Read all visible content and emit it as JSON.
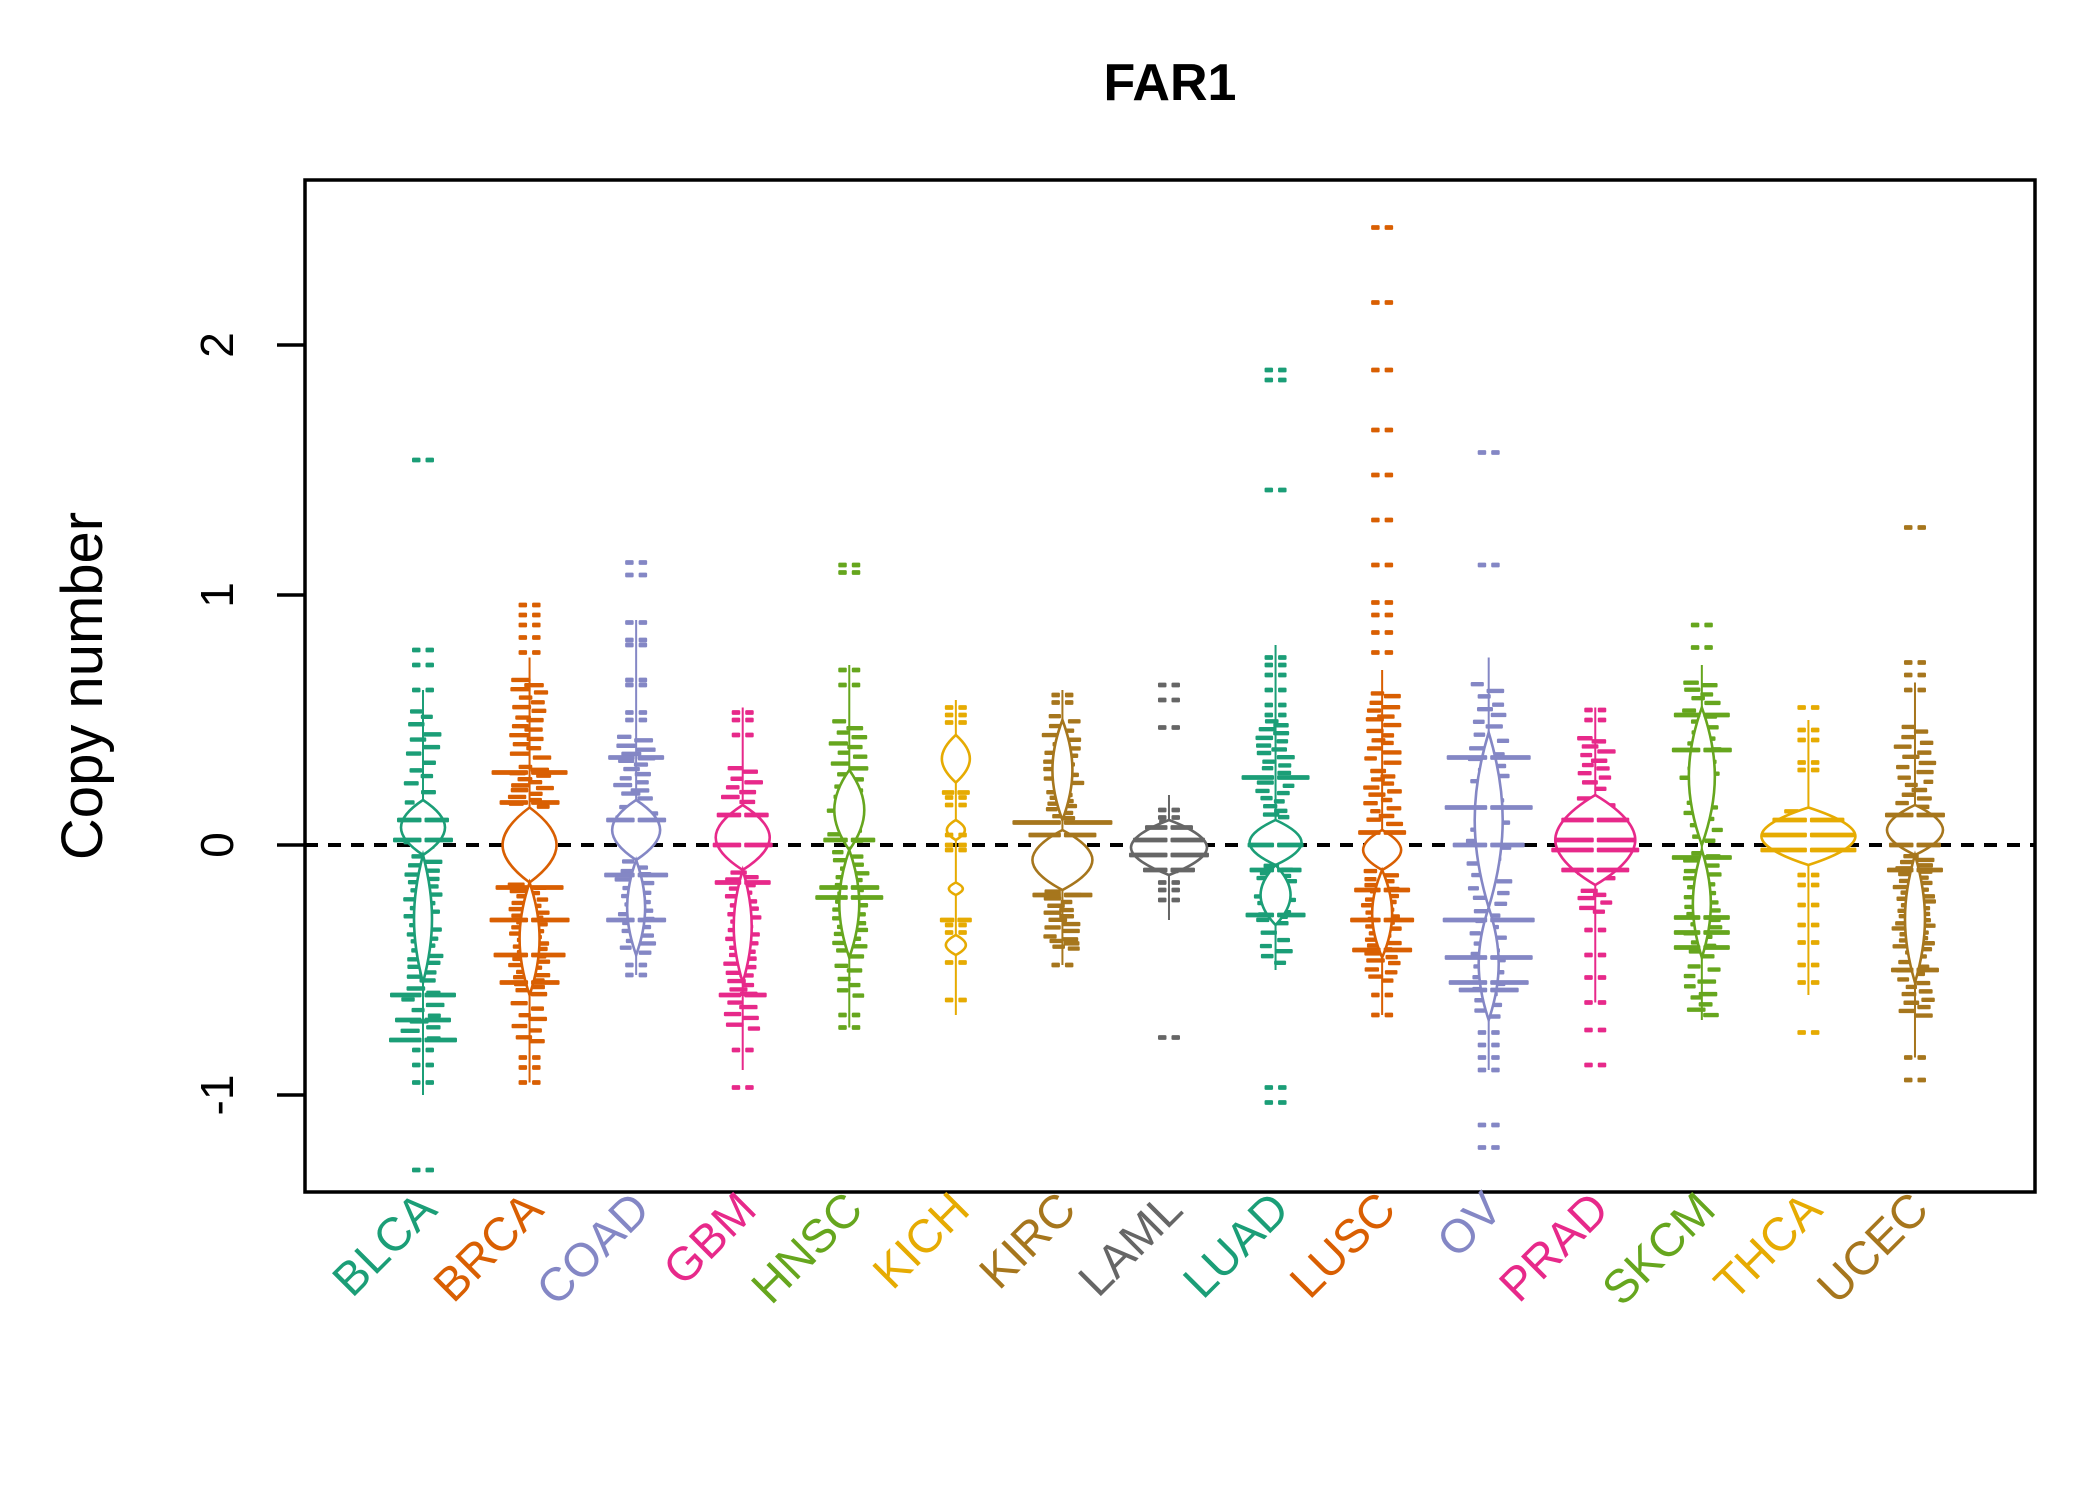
{
  "chart_data": {
    "type": "scatter",
    "subtype": "strip-violin-dash-plot",
    "title": "FAR1",
    "ylabel": "Copy number",
    "xlabel": "",
    "ylim": [
      -1.39,
      2.66
    ],
    "yticks": [
      2,
      1,
      0,
      -1
    ],
    "ytick_labels": [
      "2",
      "1",
      "0",
      "-1"
    ],
    "zero_line": {
      "value": 0,
      "style": "dashed",
      "color": "#000000"
    },
    "grid": false,
    "legend": "none",
    "axis_color": "#000000",
    "categories": [
      {
        "name": "BLCA",
        "color": "#1B9E77",
        "line": [
          -1.0,
          0.62
        ],
        "pairs": [
          1.54,
          0.78,
          0.72,
          0.62,
          -0.82,
          -0.88,
          -0.95,
          -1.3
        ],
        "bands": [
          [
            0.55,
            0.2,
            12,
            9,
            16
          ],
          [
            0.18,
            -0.02,
            8,
            14,
            13
          ],
          [
            -0.04,
            -0.55,
            30,
            8,
            15
          ],
          [
            -0.56,
            -0.78,
            10,
            12,
            16
          ]
        ],
        "wides": [
          [
            0.1,
            26
          ],
          [
            0.02,
            30
          ],
          [
            -0.6,
            33
          ],
          [
            -0.7,
            28
          ],
          [
            -0.78,
            34
          ]
        ],
        "lenses": [
          [
            0.18,
            -0.04,
            22
          ],
          [
            -0.04,
            -0.55,
            9
          ]
        ]
      },
      {
        "name": "BRCA",
        "color": "#D95F02",
        "line": [
          -0.95,
          0.75
        ],
        "pairs": [
          0.96,
          0.92,
          0.88,
          0.83,
          0.77,
          -0.85,
          -0.89,
          -0.95
        ],
        "bands": [
          [
            0.67,
            0.34,
            18,
            9,
            17
          ],
          [
            0.32,
            0.15,
            14,
            12,
            15
          ],
          [
            -0.15,
            -0.6,
            36,
            10,
            15
          ],
          [
            -0.62,
            -0.8,
            8,
            10,
            16
          ]
        ],
        "wides": [
          [
            0.29,
            38
          ],
          [
            0.17,
            30
          ],
          [
            -0.17,
            34
          ],
          [
            -0.3,
            40
          ],
          [
            -0.44,
            36
          ],
          [
            -0.55,
            30
          ]
        ],
        "lenses": [
          [
            0.15,
            -0.15,
            27
          ],
          [
            -0.15,
            -0.6,
            10
          ]
        ]
      },
      {
        "name": "COAD",
        "color": "#8487C5",
        "line": [
          -0.52,
          0.9
        ],
        "pairs": [
          1.13,
          1.08,
          0.89,
          0.82,
          0.8,
          0.66,
          0.64,
          0.53,
          0.5,
          -0.48,
          -0.52
        ],
        "bands": [
          [
            0.44,
            0.18,
            16,
            10,
            16
          ],
          [
            0.16,
            0.0,
            8,
            13,
            14
          ],
          [
            -0.06,
            -0.44,
            22,
            9,
            15
          ]
        ],
        "wides": [
          [
            0.35,
            28
          ],
          [
            0.1,
            30
          ],
          [
            -0.12,
            32
          ],
          [
            -0.3,
            30
          ]
        ],
        "lenses": [
          [
            0.18,
            -0.06,
            24
          ],
          [
            -0.06,
            -0.44,
            9
          ]
        ]
      },
      {
        "name": "GBM",
        "color": "#E7298A",
        "line": [
          -0.9,
          0.55
        ],
        "pairs": [
          0.53,
          0.5,
          0.44,
          -0.82,
          -0.97
        ],
        "bands": [
          [
            0.32,
            0.16,
            8,
            9,
            15
          ],
          [
            -0.1,
            -0.6,
            30,
            9,
            15
          ],
          [
            -0.62,
            -0.75,
            6,
            8,
            15
          ]
        ],
        "wides": [
          [
            0.12,
            26
          ],
          [
            0.0,
            30
          ],
          [
            -0.15,
            28
          ],
          [
            -0.6,
            24
          ]
        ],
        "lenses": [
          [
            0.16,
            -0.1,
            27
          ],
          [
            -0.1,
            -0.55,
            9
          ]
        ]
      },
      {
        "name": "HNSC",
        "color": "#66A61E",
        "line": [
          -0.73,
          0.72
        ],
        "pairs": [
          1.12,
          1.09,
          0.7,
          0.64,
          -0.68,
          -0.73
        ],
        "bands": [
          [
            0.5,
            0.3,
            10,
            9,
            16
          ],
          [
            0.3,
            0.0,
            12,
            13,
            13
          ],
          [
            -0.02,
            -0.45,
            26,
            9,
            15
          ],
          [
            -0.47,
            -0.62,
            6,
            9,
            15
          ]
        ],
        "wides": [
          [
            -0.17,
            30
          ],
          [
            -0.21,
            34
          ],
          [
            0.02,
            26
          ]
        ],
        "lenses": [
          [
            0.3,
            -0.02,
            15
          ],
          [
            -0.02,
            -0.45,
            10
          ]
        ]
      },
      {
        "name": "KICH",
        "color": "#E6AB02",
        "line": [
          -0.68,
          0.58
        ],
        "pairs": [
          0.55,
          0.52,
          0.49,
          0.19,
          0.16,
          0.04,
          0.0,
          -0.02,
          -0.32,
          -0.35,
          -0.47,
          -0.62
        ],
        "bands": [],
        "wides": [
          [
            0.21,
            14
          ],
          [
            -0.3,
            16
          ]
        ],
        "lenses": [
          [
            0.44,
            0.25,
            14
          ],
          [
            0.1,
            0.02,
            9
          ],
          [
            -0.36,
            -0.44,
            10
          ],
          [
            -0.15,
            -0.2,
            7
          ]
        ]
      },
      {
        "name": "KIRC",
        "color": "#A6761D",
        "line": [
          -0.48,
          0.62
        ],
        "pairs": [
          0.6,
          0.57,
          -0.48
        ],
        "bands": [
          [
            0.52,
            0.24,
            16,
            10,
            16
          ],
          [
            0.22,
            0.1,
            10,
            8,
            13
          ],
          [
            -0.18,
            -0.35,
            12,
            9,
            15
          ],
          [
            -0.36,
            -0.42,
            6,
            10,
            16
          ]
        ],
        "wides": [
          [
            0.09,
            50
          ],
          [
            0.04,
            34
          ],
          [
            -0.2,
            30
          ]
        ],
        "lenses": [
          [
            0.5,
            0.1,
            10
          ],
          [
            0.06,
            -0.18,
            30
          ]
        ]
      },
      {
        "name": "LAML",
        "color": "#666666",
        "line": [
          -0.3,
          0.2
        ],
        "pairs": [
          0.64,
          0.58,
          0.47,
          0.14,
          0.11,
          -0.15,
          -0.18,
          -0.22,
          -0.77
        ],
        "bands": [
          [
            0.1,
            -0.12,
            8,
            6,
            12
          ]
        ],
        "wides": [
          [
            0.07,
            24
          ],
          [
            0.02,
            36
          ],
          [
            -0.04,
            40
          ],
          [
            -0.1,
            26
          ]
        ],
        "lenses": [
          [
            0.1,
            -0.12,
            38
          ]
        ]
      },
      {
        "name": "LUAD",
        "color": "#1B9E77",
        "line": [
          -0.5,
          0.8
        ],
        "pairs": [
          1.9,
          1.86,
          1.42,
          0.75,
          0.72,
          0.68,
          0.62,
          0.56,
          0.52,
          -0.97,
          -1.03
        ],
        "bands": [
          [
            0.5,
            0.28,
            14,
            9,
            15
          ],
          [
            0.26,
            0.1,
            10,
            11,
            14
          ],
          [
            -0.08,
            -0.32,
            20,
            11,
            15
          ],
          [
            -0.34,
            -0.48,
            6,
            9,
            15
          ]
        ],
        "wides": [
          [
            0.27,
            34
          ],
          [
            0.0,
            28
          ],
          [
            -0.28,
            30
          ],
          [
            -0.1,
            26
          ]
        ],
        "lenses": [
          [
            0.1,
            -0.08,
            26
          ],
          [
            -0.08,
            -0.32,
            15
          ]
        ]
      },
      {
        "name": "LUSC",
        "color": "#D95F02",
        "line": [
          -0.68,
          0.7
        ],
        "pairs": [
          2.47,
          2.17,
          1.9,
          1.66,
          1.48,
          1.3,
          1.12,
          0.97,
          0.92,
          0.85,
          0.77,
          -0.6,
          -0.68
        ],
        "bands": [
          [
            0.62,
            0.32,
            16,
            9,
            16
          ],
          [
            0.3,
            0.08,
            14,
            10,
            14
          ],
          [
            -0.1,
            -0.48,
            28,
            10,
            15
          ],
          [
            -0.49,
            -0.55,
            4,
            9,
            15
          ]
        ],
        "wides": [
          [
            -0.18,
            28
          ],
          [
            -0.3,
            32
          ],
          [
            -0.42,
            30
          ],
          [
            0.05,
            24
          ]
        ],
        "lenses": [
          [
            0.06,
            -0.1,
            19
          ],
          [
            -0.1,
            -0.45,
            10
          ]
        ]
      },
      {
        "name": "OV",
        "color": "#8487C5",
        "line": [
          -0.9,
          0.75
        ],
        "pairs": [
          1.57,
          1.12,
          -0.75,
          -0.8,
          -0.85,
          -0.9,
          -1.12,
          -1.21
        ],
        "bands": [
          [
            0.65,
            0.46,
            8,
            8,
            15
          ],
          [
            0.45,
            -0.25,
            30,
            13,
            13
          ],
          [
            -0.25,
            -0.7,
            20,
            10,
            13
          ]
        ],
        "wides": [
          [
            0.35,
            42
          ],
          [
            0.15,
            44
          ],
          [
            0.0,
            36
          ],
          [
            -0.3,
            46
          ],
          [
            -0.45,
            44
          ],
          [
            -0.55,
            40
          ],
          [
            -0.58,
            30
          ]
        ],
        "lenses": [
          [
            0.45,
            -0.25,
            14
          ],
          [
            -0.25,
            -0.7,
            10
          ]
        ]
      },
      {
        "name": "PRAD",
        "color": "#E7298A",
        "line": [
          -0.63,
          0.55
        ],
        "pairs": [
          0.54,
          0.5,
          -0.34,
          -0.44,
          -0.53,
          -0.63,
          -0.74,
          -0.88
        ],
        "bands": [
          [
            0.44,
            0.22,
            12,
            9,
            15
          ],
          [
            0.2,
            -0.15,
            14,
            14,
            13
          ],
          [
            -0.17,
            -0.28,
            6,
            8,
            14
          ]
        ],
        "wides": [
          [
            0.1,
            34
          ],
          [
            0.02,
            40
          ],
          [
            -0.02,
            44
          ],
          [
            -0.1,
            34
          ]
        ],
        "lenses": [
          [
            0.2,
            -0.16,
            40
          ]
        ]
      },
      {
        "name": "SKCM",
        "color": "#66A61E",
        "line": [
          -0.7,
          0.72
        ],
        "pairs": [
          0.88,
          0.79
        ],
        "bands": [
          [
            0.66,
            0.56,
            6,
            8,
            15
          ],
          [
            0.55,
            0.0,
            24,
            12,
            13
          ],
          [
            -0.02,
            -0.45,
            24,
            10,
            15
          ],
          [
            -0.47,
            -0.69,
            10,
            9,
            15
          ]
        ],
        "wides": [
          [
            0.52,
            28
          ],
          [
            0.38,
            30
          ],
          [
            -0.05,
            30
          ],
          [
            -0.29,
            28
          ],
          [
            -0.35,
            28
          ],
          [
            -0.41,
            28
          ]
        ],
        "lenses": [
          [
            0.55,
            0.0,
            13
          ],
          [
            -0.02,
            -0.45,
            9
          ]
        ]
      },
      {
        "name": "THCA",
        "color": "#E6AB02",
        "line": [
          -0.6,
          0.5
        ],
        "pairs": [
          0.55,
          0.46,
          0.42,
          0.33,
          0.3,
          -0.12,
          -0.16,
          -0.24,
          -0.32,
          -0.39,
          -0.48,
          -0.55,
          -0.75
        ],
        "bands": [
          [
            0.14,
            -0.06,
            10,
            16,
            12
          ]
        ],
        "wides": [
          [
            0.1,
            36
          ],
          [
            0.04,
            46
          ],
          [
            -0.02,
            48
          ]
        ],
        "lenses": [
          [
            0.15,
            -0.08,
            47
          ]
        ]
      },
      {
        "name": "UCEC",
        "color": "#A6761D",
        "line": [
          -0.85,
          0.65
        ],
        "pairs": [
          1.27,
          0.73,
          0.68,
          0.62,
          -0.85,
          -0.94
        ],
        "bands": [
          [
            0.48,
            0.28,
            10,
            9,
            15
          ],
          [
            0.28,
            0.14,
            8,
            10,
            13
          ],
          [
            -0.04,
            -0.45,
            34,
            11,
            15
          ],
          [
            -0.46,
            -0.69,
            14,
            10,
            15
          ]
        ],
        "wides": [
          [
            0.12,
            30
          ],
          [
            0.0,
            26
          ],
          [
            -0.1,
            28
          ],
          [
            -0.5,
            24
          ]
        ],
        "lenses": [
          [
            0.16,
            -0.04,
            28
          ],
          [
            -0.04,
            -0.55,
            10
          ]
        ]
      }
    ]
  }
}
